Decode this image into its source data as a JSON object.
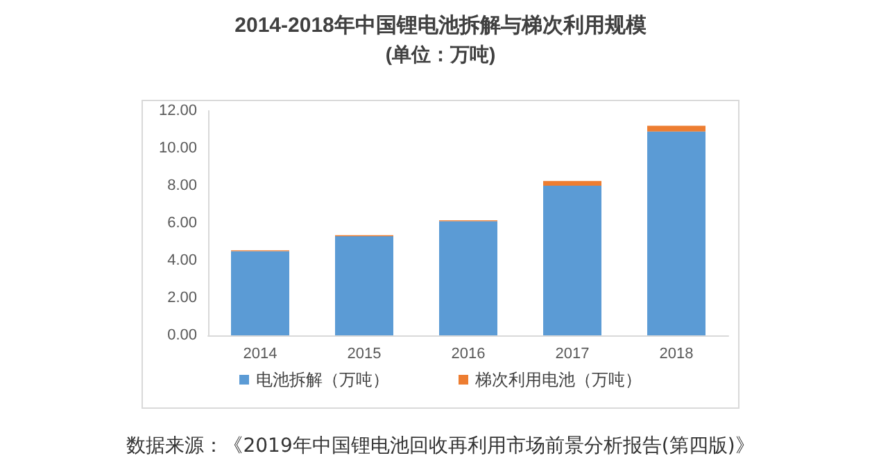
{
  "chart_data": {
    "type": "bar",
    "title": "2014-2018年中国锂电池拆解与梯次利用规模",
    "subtitle": "(单位：万吨)",
    "categories": [
      "2014",
      "2015",
      "2016",
      "2017",
      "2018"
    ],
    "stacked": true,
    "series": [
      {
        "name": "电池拆解（万吨）",
        "color": "#5b9bd5",
        "values": [
          4.5,
          5.3,
          6.1,
          8.0,
          10.9
        ]
      },
      {
        "name": "梯次利用电池（万吨）",
        "color": "#ed7d31",
        "values": [
          0.05,
          0.05,
          0.05,
          0.25,
          0.3
        ]
      }
    ],
    "ylim": [
      0,
      12
    ],
    "yticks": [
      {
        "value": 0,
        "label": "0.00"
      },
      {
        "value": 2,
        "label": "2.00"
      },
      {
        "value": 4,
        "label": "4.00"
      },
      {
        "value": 6,
        "label": "6.00"
      },
      {
        "value": 8,
        "label": "8.00"
      },
      {
        "value": 10,
        "label": "10.00"
      },
      {
        "value": 12,
        "label": "12.00"
      }
    ],
    "grid": false,
    "legend": "bottom",
    "annotations": [
      "数据来源：《2019年中国锂电池回收再利用市场前景分析报告(第四版)》"
    ]
  }
}
